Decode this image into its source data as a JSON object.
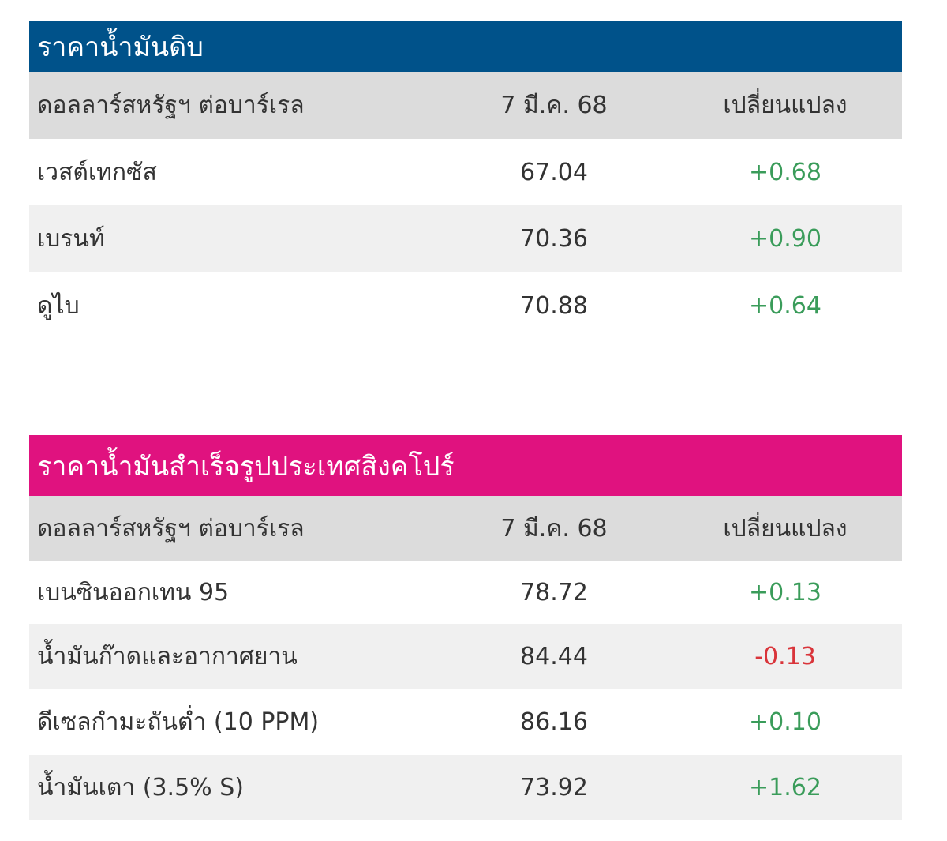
{
  "crude": {
    "title": "ราคาน้ำมันดิบ",
    "header_color": "#00528a",
    "columns": [
      "ดอลลาร์สหรัฐฯ ต่อบาร์เรล",
      "7 มี.ค. 68",
      "เปลี่ยนแปลง"
    ],
    "rows": [
      {
        "name": "เวสต์เทกซัส",
        "price": "67.04",
        "change": "+0.68"
      },
      {
        "name": "เบรนท์",
        "price": "70.36",
        "change": "+0.90"
      },
      {
        "name": "ดูไบ",
        "price": "70.88",
        "change": "+0.64"
      }
    ]
  },
  "refined": {
    "title": "ราคาน้ำมันสำเร็จรูปประเทศสิงคโปร์",
    "header_color": "#e0127f",
    "columns": [
      "ดอลลาร์สหรัฐฯ ต่อบาร์เรล",
      "7 มี.ค. 68",
      "เปลี่ยนแปลง"
    ],
    "rows": [
      {
        "name": "เบนซินออกเทน 95",
        "price": "78.72",
        "change": "+0.13"
      },
      {
        "name": "น้ำมันก๊าดและอากาศยาน",
        "price": "84.44",
        "change": "-0.13"
      },
      {
        "name": "ดีเซลกำมะถันต่ำ (10 PPM)",
        "price": "86.16",
        "change": "+0.10"
      },
      {
        "name": "น้ำมันเตา (3.5% S)",
        "price": "73.92",
        "change": "+1.62"
      }
    ]
  },
  "colors": {
    "positive": "#3a9c5a",
    "negative": "#d9343a"
  }
}
